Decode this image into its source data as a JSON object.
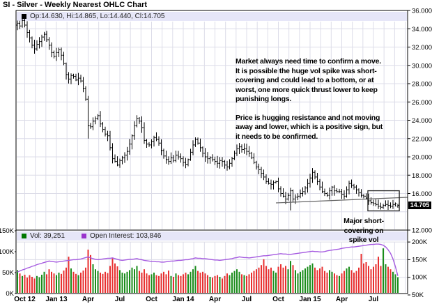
{
  "title": "SI - Silver - Weekly Nearest OHLC Chart",
  "price_panel": {
    "legend": {
      "quote": "Op:14.630, Hi:14.865, Lo:14.440, Cl:14.705"
    },
    "last_price_label": "14.705",
    "y_tick_labels": [
      "36.000",
      "34.000",
      "32.000",
      "30.000",
      "28.000",
      "26.000",
      "24.000",
      "22.000",
      "20.000",
      "18.000",
      "16.000",
      "14.000",
      "12.000"
    ]
  },
  "volume_panel": {
    "legend": {
      "vol": "Vol: 39,251",
      "open_interest": "Open Interest: 103,846"
    },
    "left_tick_labels": [
      "150K",
      "100K",
      "50K",
      "0K"
    ],
    "right_tick_labels": [
      "200K",
      "150K",
      "100K",
      "50K"
    ]
  },
  "annotations": {
    "main_paragraphs": [
      [
        "Market always need time to confirm a move.",
        "It is possible the huge vol spike was short-",
        "covering and could lead to a bottom, or at",
        "worst, one more quick thrust lower to keep",
        "punishing longs."
      ],
      [
        "Price is hugging resistance and not moving",
        "away and lower, which is a positive sign, but",
        "it needs to be confirmed."
      ]
    ],
    "spike_lines": [
      "Major short-",
      "covering on",
      "spike vol"
    ]
  },
  "colors": {
    "bar": "#000000",
    "grid": "#dcdce8",
    "border": "#000000",
    "up_volume": "#1a8c1a",
    "down_volume": "#e83030",
    "open_interest_line": "#a55ae0",
    "trendline": "#666666",
    "legend_bg": "#e6e6f8",
    "last_price_bg": "#000000",
    "last_price_fg": "#ffffff"
  },
  "chart_data": {
    "type": "ohlc",
    "title": "SI - Silver - Weekly Nearest OHLC Chart",
    "frequency": "weekly",
    "weeks": 157,
    "price_axis": {
      "min": 12,
      "max": 36,
      "tick_step": 2
    },
    "volume_axis_left_K": {
      "min": 0,
      "ticks": [
        0,
        50,
        100,
        150
      ]
    },
    "open_interest_axis_right_K": {
      "ticks": [
        50,
        100,
        150,
        200
      ]
    },
    "x_tick_labels": [
      "Oct 12",
      "Jan 13",
      "Apr",
      "Jul",
      "Oct",
      "Jan 14",
      "Apr",
      "Jul",
      "Oct",
      "Jan 15",
      "Apr",
      "Jul"
    ],
    "x_tick_weeks": [
      3,
      16,
      29,
      42,
      55,
      68,
      81,
      94,
      107,
      120,
      133,
      146
    ],
    "first_open": 34.4,
    "closes": [
      34.6,
      34.3,
      34.9,
      34.4,
      33.6,
      33.0,
      32.2,
      31.8,
      32.3,
      32.6,
      33.1,
      33.4,
      32.8,
      32.2,
      31.4,
      31.0,
      31.4,
      31.7,
      31.1,
      30.2,
      29.0,
      28.5,
      28.9,
      28.8,
      28.4,
      28.6,
      28.3,
      27.5,
      26.3,
      23.4,
      23.3,
      23.9,
      24.2,
      24.5,
      23.6,
      23.0,
      22.5,
      22.3,
      21.0,
      19.8,
      19.5,
      19.1,
      19.6,
      19.9,
      20.2,
      20.6,
      21.4,
      22.3,
      23.4,
      24.2,
      23.9,
      23.2,
      21.8,
      21.4,
      21.3,
      21.7,
      22.1,
      21.9,
      21.5,
      20.7,
      20.1,
      19.7,
      19.5,
      19.9,
      19.6,
      20.2,
      20.0,
      19.8,
      19.4,
      19.2,
      19.7,
      20.5,
      21.3,
      21.9,
      21.5,
      21.0,
      20.4,
      20.0,
      19.8,
      19.9,
      19.7,
      19.5,
      19.3,
      19.6,
      19.5,
      19.1,
      18.9,
      19.3,
      19.8,
      20.4,
      20.9,
      21.1,
      20.8,
      20.9,
      20.6,
      20.4,
      19.9,
      19.4,
      18.9,
      18.6,
      18.2,
      17.8,
      17.3,
      17.1,
      17.0,
      17.2,
      17.3,
      16.5,
      16.0,
      15.7,
      15.4,
      15.8,
      16.3,
      15.4,
      15.6,
      15.7,
      16.0,
      16.2,
      16.6,
      17.1,
      17.7,
      18.3,
      17.8,
      17.3,
      16.7,
      16.2,
      16.0,
      15.8,
      16.3,
      16.7,
      16.3,
      16.2,
      16.2,
      15.9,
      15.7,
      16.4,
      17.1,
      16.9,
      16.7,
      16.4,
      16.1,
      15.8,
      15.7,
      15.5,
      15.2,
      15.0,
      14.9,
      14.8,
      14.6,
      14.5,
      14.7,
      14.8,
      14.7,
      14.6,
      14.8,
      14.9,
      14.705
    ],
    "volumes_K": [
      56,
      48,
      42,
      45,
      38,
      44,
      40,
      36,
      42,
      39,
      45,
      52,
      46,
      58,
      52,
      48,
      44,
      50,
      47,
      55,
      62,
      88,
      60,
      52,
      47,
      44,
      50,
      55,
      62,
      105,
      92,
      70,
      58,
      54,
      50,
      47,
      52,
      49,
      66,
      84,
      72,
      65,
      56,
      50,
      48,
      52,
      56,
      62,
      58,
      66,
      54,
      50,
      58,
      48,
      44,
      46,
      50,
      44,
      42,
      48,
      52,
      46,
      55,
      42,
      40,
      48,
      44,
      42,
      46,
      50,
      46,
      52,
      58,
      66,
      54,
      50,
      52,
      48,
      44,
      40,
      38,
      42,
      44,
      40,
      36,
      42,
      48,
      44,
      50,
      54,
      58,
      52,
      46,
      44,
      42,
      46,
      50,
      54,
      58,
      62,
      68,
      82,
      66,
      58,
      62,
      54,
      50,
      64,
      70,
      62,
      66,
      58,
      78,
      68,
      56,
      48,
      52,
      56,
      60,
      64,
      68,
      72,
      62,
      56,
      60,
      64,
      54,
      50,
      56,
      52,
      48,
      44,
      42,
      48,
      54,
      60,
      64,
      56,
      50,
      54,
      62,
      95,
      72,
      75,
      66,
      58,
      64,
      70,
      88,
      66,
      108,
      70,
      64,
      58,
      52,
      46,
      39
    ],
    "open_interest_K": [
      115,
      118,
      121,
      123,
      126,
      128,
      131,
      133,
      136,
      138,
      140,
      142,
      144,
      146,
      145,
      144,
      143,
      144,
      145,
      146,
      147,
      148,
      149,
      150,
      150,
      151,
      152,
      154,
      156,
      158,
      155,
      153,
      151,
      150,
      151,
      152,
      153,
      154,
      154,
      155,
      153,
      151,
      149,
      148,
      149,
      150,
      151,
      151,
      152,
      153,
      151,
      150,
      148,
      147,
      146,
      145,
      145,
      144,
      144,
      143,
      143,
      144,
      145,
      146,
      146,
      147,
      148,
      148,
      149,
      150,
      150,
      152,
      153,
      155,
      154,
      154,
      153,
      153,
      152,
      151,
      150,
      149,
      149,
      148,
      149,
      150,
      151,
      152,
      153,
      155,
      156,
      158,
      157,
      156,
      156,
      155,
      156,
      157,
      158,
      159,
      160,
      161,
      161,
      162,
      163,
      164,
      165,
      166,
      167,
      166,
      166,
      165,
      165,
      166,
      167,
      168,
      169,
      170,
      171,
      172,
      173,
      174,
      173,
      173,
      172,
      172,
      173,
      175,
      176,
      177,
      178,
      179,
      180,
      182,
      183,
      184,
      185,
      186,
      186,
      187,
      188,
      189,
      190,
      191,
      192,
      193,
      193,
      194,
      194,
      193,
      191,
      186,
      178,
      168,
      152,
      130,
      104
    ],
    "last_bar": {
      "open": 14.63,
      "high": 14.865,
      "low": 14.44,
      "close": 14.705
    },
    "last_volume": 39251,
    "last_open_interest": 103846,
    "special_bars": {
      "2": {
        "high": 35.1
      },
      "29": {
        "low": 22.0
      },
      "112": {
        "low": 14.15
      }
    },
    "trendline": {
      "from_week": 106,
      "from_price": 14.97,
      "to_week": 160,
      "to_price": 15.58
    },
    "box": {
      "from_week": 143.7,
      "to_week": 156.6,
      "top_price": 16.3,
      "bottom_price": 14.1
    }
  }
}
